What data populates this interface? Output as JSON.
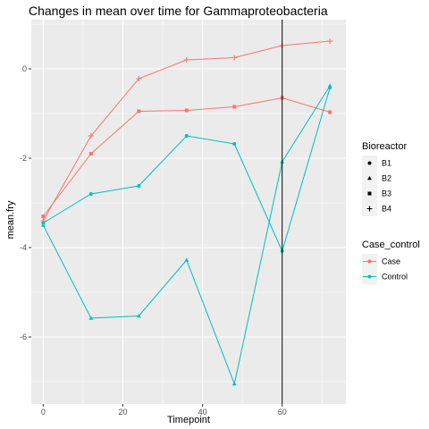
{
  "chart_data": {
    "type": "line",
    "title": "Changes in mean over time for  Gammaproteobacteria",
    "xlabel": "Timepoint",
    "ylabel": "mean.fry",
    "xlim": [
      -3,
      76
    ],
    "ylim": [
      -7.5,
      1.1
    ],
    "xticks": [
      0,
      20,
      40,
      60
    ],
    "yticks": [
      -6,
      -4,
      -2,
      0
    ],
    "grid": true,
    "vline_x": 60,
    "legend_position": "right",
    "legends": [
      {
        "title": "Bioreactor",
        "items": [
          {
            "label": "B1",
            "shape": "circle"
          },
          {
            "label": "B2",
            "shape": "triangle"
          },
          {
            "label": "B3",
            "shape": "square"
          },
          {
            "label": "B4",
            "shape": "plus"
          }
        ]
      },
      {
        "title": "Case_control",
        "items": [
          {
            "label": "Case",
            "color": "#F8766D"
          },
          {
            "label": "Control",
            "color": "#00BFC4"
          }
        ]
      }
    ],
    "series": [
      {
        "group": "Case",
        "bioreactor": "B3",
        "color": "#F8766D",
        "shape": "square",
        "x": [
          0,
          12,
          24,
          36,
          48,
          60,
          72
        ],
        "y": [
          -3.3,
          -1.9,
          -0.95,
          -0.93,
          -0.85,
          -0.65,
          -0.97
        ]
      },
      {
        "group": "Case",
        "bioreactor": "B4",
        "color": "#F8766D",
        "shape": "plus",
        "x": [
          0,
          12,
          24,
          36,
          48,
          60,
          72
        ],
        "y": [
          -3.4,
          -1.5,
          -0.22,
          0.2,
          0.25,
          0.52,
          0.62
        ]
      },
      {
        "group": "Control",
        "bioreactor": "B1",
        "color": "#00BFC4",
        "shape": "circle",
        "x": [
          0,
          12,
          24,
          36,
          48,
          60,
          72
        ],
        "y": [
          -3.45,
          -2.8,
          -2.62,
          -1.5,
          -1.68,
          -4.08,
          -0.42
        ]
      },
      {
        "group": "Control",
        "bioreactor": "B2",
        "color": "#00BFC4",
        "shape": "triangle",
        "x": [
          0,
          12,
          24,
          36,
          48,
          60,
          72
        ],
        "y": [
          -3.5,
          -5.58,
          -5.53,
          -4.28,
          -7.05,
          -2.08,
          -0.38
        ]
      }
    ]
  }
}
